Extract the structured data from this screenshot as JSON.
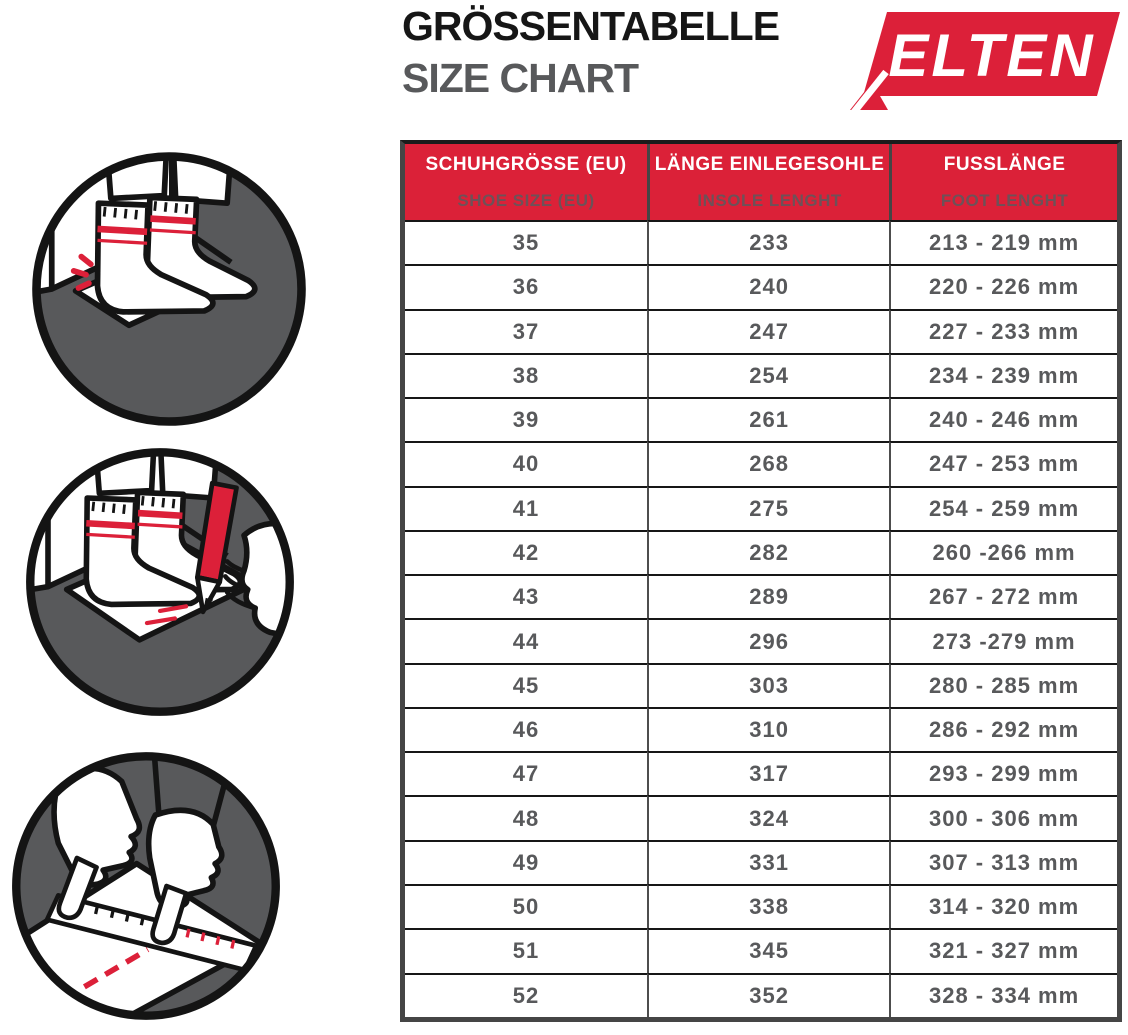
{
  "header": {
    "title_de": "GRÖSSENTABELLE",
    "title_en": "SIZE CHART",
    "brand": "ELTEN"
  },
  "colors": {
    "brand_red": "#DC2039",
    "title_black": "#161616",
    "title_gray": "#58595B",
    "table_header_bg": "#DB2138",
    "table_header_text": "#FFFFFF",
    "table_header_subtext": "#6E5158",
    "table_body_text": "#58595B",
    "table_border": "#454545",
    "row_divider": "#161616",
    "illustration_gray": "#58595B"
  },
  "illustrations": [
    {
      "name": "foot-against-wall-icon"
    },
    {
      "name": "mark-toe-with-pencil-icon"
    },
    {
      "name": "measure-foot-length-ruler-icon"
    }
  ],
  "chart_data": {
    "type": "table",
    "title_de": "GRÖSSENTABELLE",
    "title_en": "SIZE CHART",
    "columns": [
      {
        "title_de": "SCHUHGRÖSSE (EU)",
        "title_en": "SHOE SIZE (EU)"
      },
      {
        "title_de": "LÄNGE EINLEGESOHLE",
        "title_en": "INSOLE LENGHT"
      },
      {
        "title_de": "FUSSLÄNGE",
        "title_en": "FOOT LENGHT"
      }
    ],
    "rows": [
      [
        "35",
        "233",
        "213 - 219 mm"
      ],
      [
        "36",
        "240",
        "220 - 226 mm"
      ],
      [
        "37",
        "247",
        "227 - 233 mm"
      ],
      [
        "38",
        "254",
        "234 - 239 mm"
      ],
      [
        "39",
        "261",
        "240 - 246 mm"
      ],
      [
        "40",
        "268",
        "247 - 253 mm"
      ],
      [
        "41",
        "275",
        "254 - 259 mm"
      ],
      [
        "42",
        "282",
        "260 -266 mm"
      ],
      [
        "43",
        "289",
        "267 - 272 mm"
      ],
      [
        "44",
        "296",
        "273 -279 mm"
      ],
      [
        "45",
        "303",
        "280 - 285 mm"
      ],
      [
        "46",
        "310",
        "286 - 292 mm"
      ],
      [
        "47",
        "317",
        "293 - 299 mm"
      ],
      [
        "48",
        "324",
        "300 - 306 mm"
      ],
      [
        "49",
        "331",
        "307 - 313 mm"
      ],
      [
        "50",
        "338",
        "314 - 320 mm"
      ],
      [
        "51",
        "345",
        "321 - 327 mm"
      ],
      [
        "52",
        "352",
        "328 - 334 mm"
      ]
    ]
  }
}
